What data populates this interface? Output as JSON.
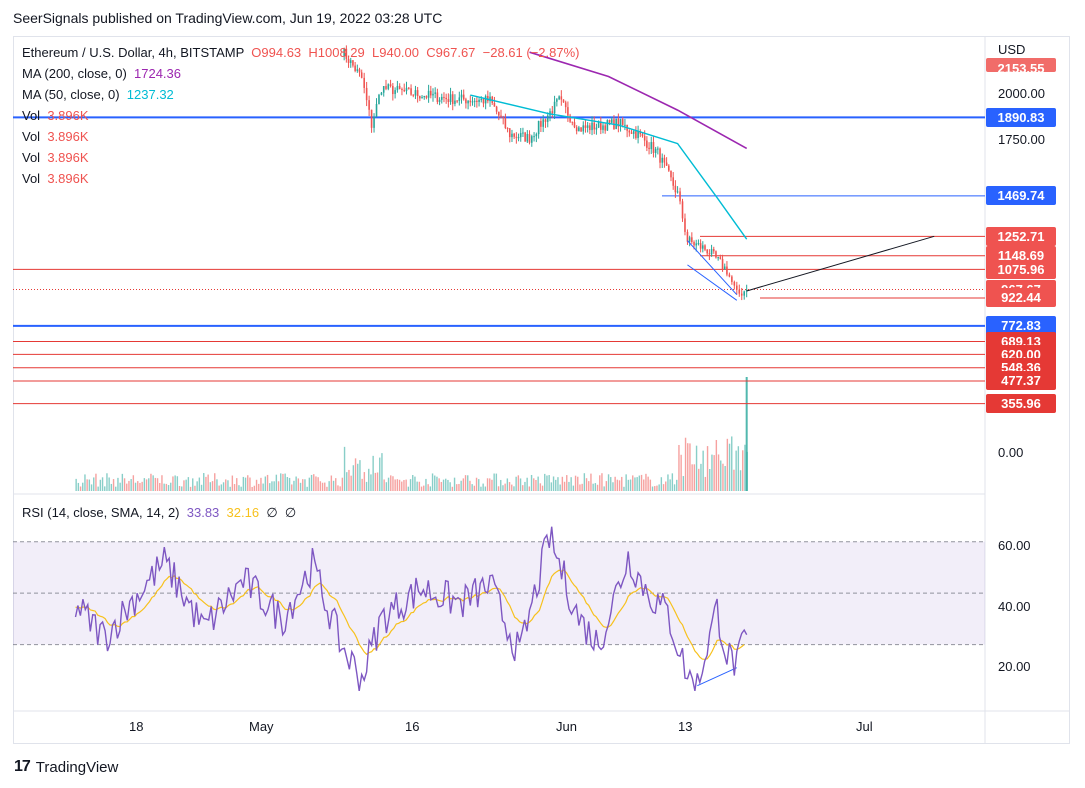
{
  "publisher_line": "SeerSignals published on TradingView.com, Jun 19, 2022 03:28 UTC",
  "symbol": {
    "name": "Ethereum / U.S. Dollar, 4h, BITSTAMP",
    "open": "O994.63",
    "high": "H1008.29",
    "low": "L940.00",
    "close": "C967.67",
    "change": "−28.61 (−2.87%)"
  },
  "indicators": {
    "ma200_label": "MA (200, close, 0)",
    "ma200_value": "1724.36",
    "ma50_label": "MA (50, close, 0)",
    "ma50_value": "1237.32",
    "vol_label": "Vol",
    "vol_value": "3.896K",
    "rsi_label": "RSI (14, close, SMA, 14, 2)",
    "rsi_value": "33.83",
    "rsi_sma_value": "32.16",
    "rsi_extra1": "∅",
    "rsi_extra2": "∅"
  },
  "price_axis": {
    "currency": "USD",
    "labels": [
      "2000.00",
      "1750.00",
      "0.00"
    ],
    "top_badge": "2153.55"
  },
  "price_badges": [
    {
      "text": "1890.83",
      "color": "blue"
    },
    {
      "text": "1469.74",
      "color": "blue"
    },
    {
      "text": "1252.71",
      "color": "red"
    },
    {
      "text": "1148.69",
      "color": "red"
    },
    {
      "text": "1075.96",
      "color": "red"
    },
    {
      "text": "967.67",
      "color": "red"
    },
    {
      "text": "922.44",
      "color": "red"
    },
    {
      "text": "772.83",
      "color": "blue"
    },
    {
      "text": "689.13",
      "color": "red"
    },
    {
      "text": "620.00",
      "color": "red"
    },
    {
      "text": "548.36",
      "color": "red"
    },
    {
      "text": "477.37",
      "color": "red"
    },
    {
      "text": "355.96",
      "color": "red"
    }
  ],
  "rsi_axis": {
    "labels": [
      "60.00",
      "40.00",
      "20.00"
    ]
  },
  "time_axis": {
    "labels": [
      "18",
      "May",
      "16",
      "Jun",
      "13",
      "Jul"
    ]
  },
  "footer": {
    "brand": "TradingView",
    "logo_mark": "17"
  },
  "colors": {
    "up": "#26a69a",
    "down": "#ef5350",
    "ma200": "#9c27b0",
    "ma50": "#00bcd4",
    "rsi": "#7e57c2",
    "rsi_sma": "#f7c11d",
    "support_blue": "#2962ff",
    "level_red": "#e53935"
  },
  "chart_data": {
    "type": "candlestick",
    "symbol": "ETHUSD",
    "timeframe": "4h",
    "price_series_close_approx": [
      {
        "x": "2022-05-09",
        "y": 2250
      },
      {
        "x": "2022-05-11",
        "y": 2100
      },
      {
        "x": "2022-05-12",
        "y": 1850
      },
      {
        "x": "2022-05-13",
        "y": 2050
      },
      {
        "x": "2022-05-16",
        "y": 2020
      },
      {
        "x": "2022-05-20",
        "y": 1990
      },
      {
        "x": "2022-05-24",
        "y": 1980
      },
      {
        "x": "2022-05-26",
        "y": 1800
      },
      {
        "x": "2022-05-28",
        "y": 1780
      },
      {
        "x": "2022-05-31",
        "y": 1980
      },
      {
        "x": "2022-06-02",
        "y": 1830
      },
      {
        "x": "2022-06-06",
        "y": 1860
      },
      {
        "x": "2022-06-08",
        "y": 1800
      },
      {
        "x": "2022-06-10",
        "y": 1700
      },
      {
        "x": "2022-06-12",
        "y": 1480
      },
      {
        "x": "2022-06-13",
        "y": 1230
      },
      {
        "x": "2022-06-15",
        "y": 1180
      },
      {
        "x": "2022-06-17",
        "y": 1070
      },
      {
        "x": "2022-06-18",
        "y": 940
      },
      {
        "x": "2022-06-19",
        "y": 967.67
      }
    ],
    "ma200_approx": [
      {
        "x": "2022-05-28",
        "y": 2240
      },
      {
        "x": "2022-06-05",
        "y": 2110
      },
      {
        "x": "2022-06-12",
        "y": 1930
      },
      {
        "x": "2022-06-19",
        "y": 1724.36
      }
    ],
    "ma50_approx": [
      {
        "x": "2022-05-22",
        "y": 2010
      },
      {
        "x": "2022-05-30",
        "y": 1910
      },
      {
        "x": "2022-06-06",
        "y": 1850
      },
      {
        "x": "2022-06-12",
        "y": 1750
      },
      {
        "x": "2022-06-16",
        "y": 1460
      },
      {
        "x": "2022-06-19",
        "y": 1237.32
      }
    ],
    "horizontal_levels": [
      1890.83,
      1469.74,
      1252.71,
      1148.69,
      1075.96,
      967.67,
      922.44,
      772.83,
      689.13,
      620.0,
      548.36,
      477.37,
      355.96
    ],
    "volume_last": 3896,
    "rsi": {
      "period": 14,
      "last": 33.83,
      "sma_last": 32.16,
      "band_upper": 70,
      "band_middle": 50,
      "band_lower": 30,
      "ylim": [
        10,
        80
      ],
      "approx_path": [
        {
          "x": "2022-04-12",
          "y": 45
        },
        {
          "x": "2022-04-15",
          "y": 33
        },
        {
          "x": "2022-04-18",
          "y": 48
        },
        {
          "x": "2022-04-21",
          "y": 62
        },
        {
          "x": "2022-04-25",
          "y": 36
        },
        {
          "x": "2022-04-29",
          "y": 55
        },
        {
          "x": "2022-05-03",
          "y": 40
        },
        {
          "x": "2022-05-06",
          "y": 61
        },
        {
          "x": "2022-05-09",
          "y": 29
        },
        {
          "x": "2022-05-11",
          "y": 17
        },
        {
          "x": "2022-05-13",
          "y": 40
        },
        {
          "x": "2022-05-17",
          "y": 52
        },
        {
          "x": "2022-05-21",
          "y": 46
        },
        {
          "x": "2022-05-24",
          "y": 53
        },
        {
          "x": "2022-05-27",
          "y": 26
        },
        {
          "x": "2022-05-30",
          "y": 72
        },
        {
          "x": "2022-06-02",
          "y": 40
        },
        {
          "x": "2022-06-04",
          "y": 30
        },
        {
          "x": "2022-06-07",
          "y": 64
        },
        {
          "x": "2022-06-09",
          "y": 50
        },
        {
          "x": "2022-06-11",
          "y": 42
        },
        {
          "x": "2022-06-13",
          "y": 18
        },
        {
          "x": "2022-06-14",
          "y": 14
        },
        {
          "x": "2022-06-15",
          "y": 30
        },
        {
          "x": "2022-06-16",
          "y": 44
        },
        {
          "x": "2022-06-17",
          "y": 26
        },
        {
          "x": "2022-06-18",
          "y": 22
        },
        {
          "x": "2022-06-19",
          "y": 33.83
        }
      ]
    },
    "trendlines": [
      {
        "name": "price wedge upper",
        "points": [
          {
            "x": "2022-06-13",
            "y": 1230
          },
          {
            "x": "2022-06-18",
            "y": 940
          }
        ]
      },
      {
        "name": "price wedge lower",
        "points": [
          {
            "x": "2022-06-13",
            "y": 1100
          },
          {
            "x": "2022-06-18",
            "y": 910
          }
        ]
      },
      {
        "name": "projection",
        "points": [
          {
            "x": "2022-06-19",
            "y": 960
          },
          {
            "x": "2022-07-08",
            "y": 1253
          }
        ]
      },
      {
        "name": "rsi divergence",
        "points": [
          {
            "x": "2022-06-14",
            "y": 14
          },
          {
            "x": "2022-06-18",
            "y": 21
          }
        ]
      }
    ]
  }
}
